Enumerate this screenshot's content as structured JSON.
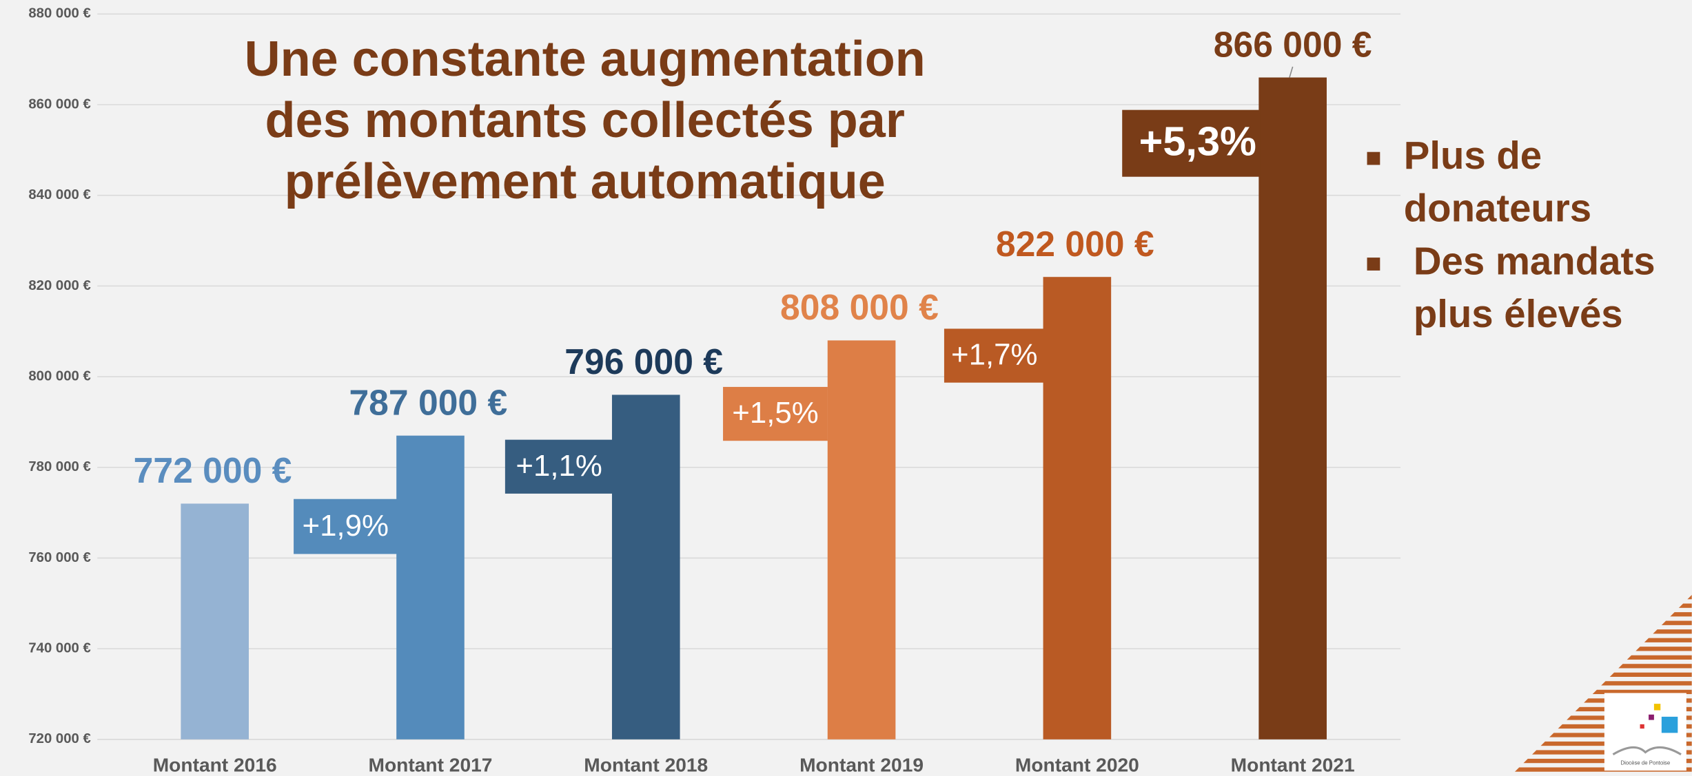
{
  "chart_data": {
    "type": "bar",
    "title": [
      "Une constante augmentation",
      "des montants collectés par",
      "prélèvement automatique"
    ],
    "categories": [
      "Montant 2016",
      "Montant 2017",
      "Montant 2018",
      "Montant 2019",
      "Montant 2020",
      "Montant 2021"
    ],
    "values": [
      772000,
      787000,
      796000,
      808000,
      822000,
      866000
    ],
    "value_labels": [
      "772 000 €",
      "787 000 €",
      "796 000 €",
      "808 000 €",
      "822 000 €",
      "866 000 €"
    ],
    "colors": [
      "#95b3d3",
      "#548bbb",
      "#365d80",
      "#dd7e46",
      "#b95a24",
      "#793c17"
    ],
    "value_label_colors": [
      "#5a8dbf",
      "#3f6e99",
      "#1d3a5a",
      "#e0834a",
      "#c0581f",
      "#7a3c17"
    ],
    "annotations": [
      null,
      "+1,9%",
      "+1,1%",
      "+1,5%",
      "+1,7%",
      "+5,3%"
    ],
    "ylim": [
      720000,
      880000
    ],
    "yticks": [
      {
        "value": 720000,
        "label": "720 000 €"
      },
      {
        "value": 740000,
        "label": "740 000 €"
      },
      {
        "value": 760000,
        "label": "760 000 €"
      },
      {
        "value": 780000,
        "label": "780 000 €"
      },
      {
        "value": 800000,
        "label": "800 000 €"
      },
      {
        "value": 820000,
        "label": "820 000 €"
      },
      {
        "value": 840000,
        "label": "840 000 €"
      },
      {
        "value": 860000,
        "label": "860 000 €"
      },
      {
        "value": 880000,
        "label": "880 000 €"
      }
    ],
    "grid": true,
    "bullets": [
      [
        "Plus de",
        "donateurs"
      ],
      [
        "Des mandats",
        "plus élevés"
      ]
    ],
    "logo_text": "Diocèse de Pontoise"
  }
}
